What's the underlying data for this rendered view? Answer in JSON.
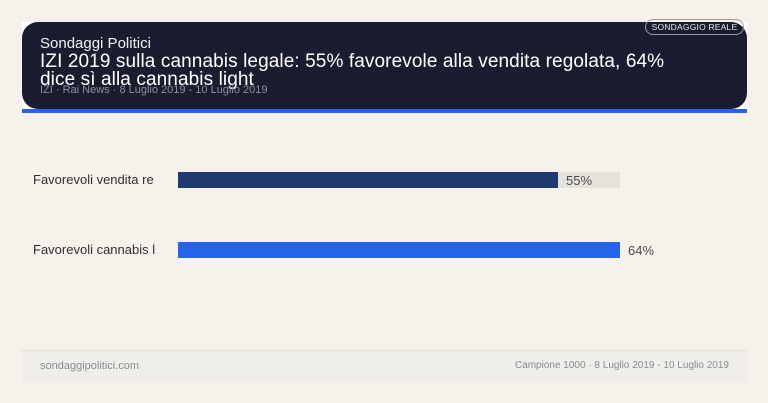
{
  "header": {
    "brand": "Sondaggi Politici",
    "title_line1": "IZI 2019 sulla cannabis legale: 55% favorevole alla vendita regolata, 64%",
    "title_line2": "dice sì alla cannabis light",
    "subtitle": "IZI · Rai News · 8 Luglio 2019 - 10 Luglio 2019",
    "badge": "SONDAGGIO REALE"
  },
  "colors": {
    "header_bg": "#1b1c30",
    "accent": "#2563eb",
    "bar_dark": "#1e3a6e",
    "bar_blue": "#2563eb",
    "track": "#e6e2dc",
    "page_bg": "#f6f1eb"
  },
  "chart_data": {
    "type": "bar",
    "orientation": "horizontal",
    "title": "IZI 2019 sulla cannabis legale: 55% favorevole alla vendita regolata, 64% dice sì alla cannabis light",
    "categories": [
      "Favorevoli vendita re",
      "Favorevoli cannabis l"
    ],
    "values": [
      55,
      64
    ],
    "value_labels": [
      "55%",
      "64%"
    ],
    "unit": "%",
    "xlim": [
      0,
      64
    ],
    "xlabel": "",
    "ylabel": "",
    "grid": false,
    "legend": null,
    "bar_colors": [
      "#1e3a6e",
      "#2563eb"
    ]
  },
  "footer": {
    "site": "sondaggipolitici.com",
    "meta": "Campione 1000 · 8 Luglio 2019 - 10 Luglio 2019"
  }
}
